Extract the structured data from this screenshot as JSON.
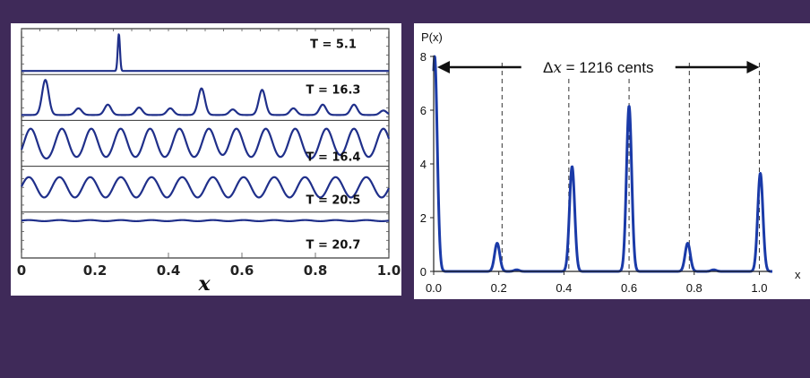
{
  "chart_data": [
    {
      "type": "line",
      "xlabel": "x",
      "xlim": [
        0,
        1.0
      ],
      "x_ticks": [
        "0",
        "0.2",
        "0.4",
        "0.6",
        "0.8",
        "1.0"
      ],
      "panels": [
        {
          "label": "T = 5.1",
          "kind": "peaks",
          "baseline": 0.0,
          "width": 0.003,
          "peaks": [
            [
              0.265,
              1.0
            ]
          ]
        },
        {
          "label": "T = 16.3",
          "kind": "peaks",
          "baseline": 0.05,
          "width": 0.009,
          "peaks": [
            [
              0.065,
              0.95
            ],
            [
              0.155,
              0.18
            ],
            [
              0.235,
              0.28
            ],
            [
              0.32,
              0.2
            ],
            [
              0.405,
              0.18
            ],
            [
              0.49,
              0.72
            ],
            [
              0.575,
              0.15
            ],
            [
              0.655,
              0.68
            ],
            [
              0.74,
              0.18
            ],
            [
              0.82,
              0.28
            ],
            [
              0.905,
              0.28
            ],
            [
              0.985,
              0.12
            ]
          ]
        },
        {
          "label": "T = 16.4",
          "kind": "peaks",
          "baseline": 0.0,
          "width": 0.018,
          "peaks": [
            [
              0.025,
              0.92
            ],
            [
              0.11,
              0.92
            ],
            [
              0.19,
              0.92
            ],
            [
              0.27,
              0.92
            ],
            [
              0.35,
              0.92
            ],
            [
              0.43,
              0.92
            ],
            [
              0.51,
              0.92
            ],
            [
              0.585,
              0.92
            ],
            [
              0.665,
              0.92
            ],
            [
              0.745,
              0.92
            ],
            [
              0.83,
              0.92
            ],
            [
              0.905,
              0.92
            ],
            [
              0.985,
              0.92
            ]
          ]
        },
        {
          "label": "T = 20.5",
          "kind": "wave",
          "baseline": 0.3,
          "amplitude": 0.55,
          "period": 0.0835,
          "phase": 0.02
        },
        {
          "label": "T = 20.7",
          "kind": "wave",
          "baseline": 0.9,
          "amplitude": 0.03,
          "period": 0.0835,
          "phase": 0.02
        }
      ]
    },
    {
      "type": "line",
      "ylabel": "P(x)",
      "xlabel": "x",
      "xlim": [
        0,
        1.04
      ],
      "ylim": [
        0,
        8
      ],
      "x_ticks": [
        "0.0",
        "0.2",
        "0.4",
        "0.6",
        "0.8",
        "1.0"
      ],
      "y_ticks": [
        "0",
        "2",
        "4",
        "6",
        "8"
      ],
      "annotation": {
        "prefix": "Δ",
        "var": "x",
        "suffix": " = 1216 cents",
        "from": 0.0,
        "to": 1.0
      },
      "dashed_lines": [
        0.0,
        0.21,
        0.415,
        0.6,
        0.785,
        1.0
      ],
      "width": 0.008,
      "peaks": [
        [
          0.003,
          8.0
        ],
        [
          0.195,
          1.05
        ],
        [
          0.255,
          0.06
        ],
        [
          0.425,
          3.9
        ],
        [
          0.6,
          6.15
        ],
        [
          0.78,
          1.05
        ],
        [
          0.86,
          0.06
        ],
        [
          1.003,
          3.65
        ]
      ]
    }
  ]
}
